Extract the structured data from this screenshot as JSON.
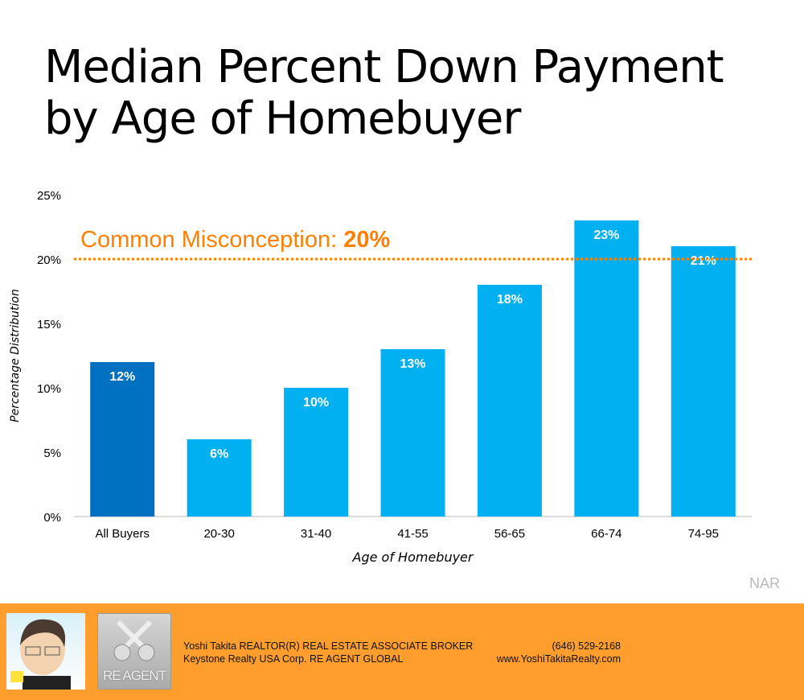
{
  "title_lines": [
    "Median Percent Down Payment",
    "by Age of Homebuyer"
  ],
  "source": "NAR",
  "chart_data": {
    "type": "bar",
    "categories": [
      "All Buyers",
      "20-30",
      "31-40",
      "41-55",
      "56-65",
      "66-74",
      "74-95"
    ],
    "values": [
      12,
      6,
      10,
      13,
      18,
      23,
      21
    ],
    "data_labels": [
      "12%",
      "6%",
      "10%",
      "13%",
      "18%",
      "23%",
      "21%"
    ],
    "xlabel": "Age of Homebuyer",
    "ylabel": "Percentage Distribution",
    "ylim": [
      0,
      25
    ],
    "yticks": [
      0,
      5,
      10,
      15,
      20,
      25
    ],
    "ytick_labels": [
      "0%",
      "5%",
      "10%",
      "15%",
      "20%",
      "25%"
    ],
    "grid": false,
    "bar_colors": [
      "#0070c0",
      "#00b0f0",
      "#00b0f0",
      "#00b0f0",
      "#00b0f0",
      "#00b0f0",
      "#00b0f0"
    ],
    "reference_line": {
      "value": 20,
      "label": "Common Misconception: ",
      "label_bold": "20%",
      "color": "#ff8000",
      "style": "dotted"
    }
  },
  "footer": {
    "name_line": "Yoshi Takita REALTOR(R) REAL ESTATE ASSOCIATE BROKER",
    "company_line": "Keystone Realty USA Corp.  RE AGENT GLOBAL",
    "phone": "(646) 529-2168",
    "website": "www.YoshiTakitaRealty.com",
    "logo_text": "RE AGENT",
    "color": "#ff9e2c"
  }
}
